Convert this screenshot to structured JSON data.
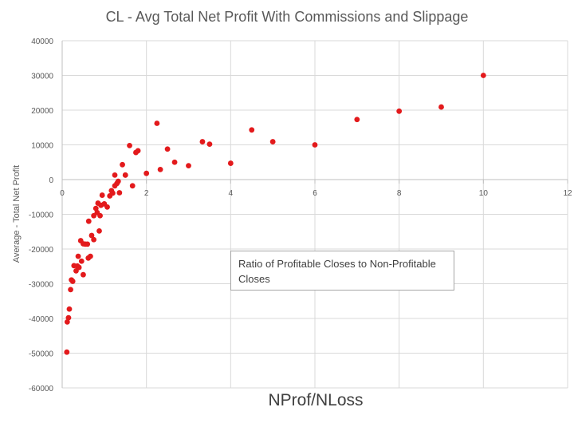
{
  "chart_data": {
    "type": "scatter",
    "title": "CL - Avg Total Net Profit With Commissions and Slippage",
    "xlabel": "NProf/NLoss",
    "ylabel": "Average - Total Net Profit",
    "annotation": "Ratio of Profitable Closes to Non-Profitable Closes",
    "xlim": [
      0,
      12
    ],
    "ylim": [
      -60000,
      40000
    ],
    "x_ticks": [
      0,
      2,
      4,
      6,
      8,
      10,
      12
    ],
    "y_ticks": [
      -60000,
      -50000,
      -40000,
      -30000,
      -20000,
      -10000,
      0,
      10000,
      20000,
      30000,
      40000
    ],
    "x_tick_labels": [
      "0",
      "2",
      "4",
      "6",
      "8",
      "10",
      "12"
    ],
    "y_tick_labels": [
      "-60000",
      "-50000",
      "-40000",
      "-30000",
      "-20000",
      "-10000",
      "0",
      "10000",
      "20000",
      "30000",
      "40000"
    ],
    "grid": true,
    "marker_color": "#e31a1c",
    "series": [
      {
        "name": "Average - Total Net Profit",
        "points": [
          [
            0.11,
            -49700
          ],
          [
            0.12,
            -41000
          ],
          [
            0.15,
            -39800
          ],
          [
            0.17,
            -37300
          ],
          [
            0.2,
            -31700
          ],
          [
            0.22,
            -28900
          ],
          [
            0.25,
            -29300
          ],
          [
            0.28,
            -24800
          ],
          [
            0.33,
            -26300
          ],
          [
            0.36,
            -24900
          ],
          [
            0.38,
            -22100
          ],
          [
            0.4,
            -25300
          ],
          [
            0.44,
            -17600
          ],
          [
            0.46,
            -23500
          ],
          [
            0.5,
            -18500
          ],
          [
            0.5,
            -27400
          ],
          [
            0.55,
            -18600
          ],
          [
            0.6,
            -18600
          ],
          [
            0.62,
            -22600
          ],
          [
            0.63,
            -12000
          ],
          [
            0.67,
            -22100
          ],
          [
            0.7,
            -16100
          ],
          [
            0.75,
            -17300
          ],
          [
            0.75,
            -10400
          ],
          [
            0.8,
            -8300
          ],
          [
            0.83,
            -9500
          ],
          [
            0.85,
            -6800
          ],
          [
            0.88,
            -14800
          ],
          [
            0.9,
            -10400
          ],
          [
            0.92,
            -7400
          ],
          [
            0.95,
            -4500
          ],
          [
            1.0,
            -7000
          ],
          [
            1.07,
            -7900
          ],
          [
            1.13,
            -4700
          ],
          [
            1.17,
            -3200
          ],
          [
            1.2,
            -3900
          ],
          [
            1.25,
            1300
          ],
          [
            1.25,
            -1800
          ],
          [
            1.3,
            -1100
          ],
          [
            1.33,
            -500
          ],
          [
            1.36,
            -3800
          ],
          [
            1.43,
            4300
          ],
          [
            1.5,
            1300
          ],
          [
            1.5,
            1300
          ],
          [
            1.6,
            9800
          ],
          [
            1.67,
            -1800
          ],
          [
            1.75,
            7800
          ],
          [
            1.8,
            8300
          ],
          [
            2.0,
            1800
          ],
          [
            2.25,
            16200
          ],
          [
            2.33,
            2900
          ],
          [
            2.5,
            8800
          ],
          [
            2.67,
            5000
          ],
          [
            3.0,
            4000
          ],
          [
            3.33,
            10900
          ],
          [
            3.5,
            10200
          ],
          [
            4.0,
            4700
          ],
          [
            4.5,
            14300
          ],
          [
            5.0,
            10900
          ],
          [
            6.0,
            10000
          ],
          [
            7.0,
            17300
          ],
          [
            8.0,
            19700
          ],
          [
            9.0,
            20900
          ],
          [
            10.0,
            30000
          ]
        ]
      }
    ]
  }
}
